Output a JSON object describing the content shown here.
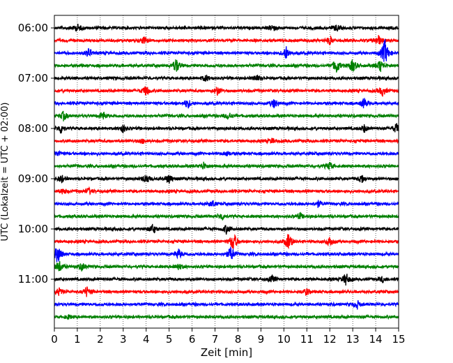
{
  "chart_data": {
    "type": "line",
    "title": "",
    "xlabel": "Zeit  [min]",
    "ylabel": "UTC (Lokalzeit = UTC + 02:00)",
    "xlim": [
      0,
      15
    ],
    "x_ticks": [
      0,
      1,
      2,
      3,
      4,
      5,
      6,
      7,
      8,
      9,
      10,
      11,
      12,
      13,
      14,
      15
    ],
    "grid": "vertical dotted",
    "y_tick_labels": [
      "06:00",
      "07:00",
      "08:00",
      "09:00",
      "10:00",
      "11:00"
    ],
    "traces_per_hour": 4,
    "trace_minutes": 15,
    "colors": [
      "#000000",
      "#ff0000",
      "#0000ff",
      "#008000"
    ],
    "series": [
      {
        "start": "06:00",
        "color": "#000000",
        "events": [
          [
            1.0,
            0.6
          ],
          [
            9.5,
            0.6
          ],
          [
            12.3,
            0.5
          ]
        ]
      },
      {
        "start": "06:15",
        "color": "#ff0000",
        "events": [
          [
            3.9,
            0.6
          ],
          [
            12.0,
            0.6
          ],
          [
            14.1,
            1.0
          ]
        ]
      },
      {
        "start": "06:30",
        "color": "#0000ff",
        "events": [
          [
            1.5,
            0.7
          ],
          [
            10.1,
            1.0
          ],
          [
            14.4,
            2.2
          ]
        ]
      },
      {
        "start": "06:45",
        "color": "#008000",
        "events": [
          [
            5.3,
            1.2
          ],
          [
            12.3,
            1.2
          ],
          [
            13.0,
            1.0
          ],
          [
            14.2,
            1.0
          ]
        ]
      },
      {
        "start": "07:00",
        "color": "#000000",
        "events": [
          [
            6.6,
            0.5
          ],
          [
            8.8,
            0.5
          ]
        ]
      },
      {
        "start": "07:15",
        "color": "#ff0000",
        "events": [
          [
            4.0,
            0.8
          ],
          [
            7.1,
            0.7
          ],
          [
            14.3,
            0.8
          ]
        ]
      },
      {
        "start": "07:30",
        "color": "#0000ff",
        "events": [
          [
            5.8,
            0.8
          ],
          [
            9.6,
            0.8
          ],
          [
            13.5,
            0.8
          ]
        ]
      },
      {
        "start": "07:45",
        "color": "#008000",
        "events": [
          [
            0.4,
            0.7
          ],
          [
            2.1,
            0.7
          ],
          [
            7.6,
            0.6
          ]
        ]
      },
      {
        "start": "08:00",
        "color": "#000000",
        "events": [
          [
            0.3,
            0.8
          ],
          [
            3.0,
            0.6
          ],
          [
            13.5,
            0.6
          ],
          [
            14.9,
            0.8
          ]
        ]
      },
      {
        "start": "08:15",
        "color": "#ff0000",
        "events": [
          [
            3.8,
            0.4
          ],
          [
            9.5,
            0.4
          ]
        ]
      },
      {
        "start": "08:30",
        "color": "#0000ff",
        "events": [
          [
            0.2,
            0.4
          ],
          [
            7.5,
            0.4
          ]
        ]
      },
      {
        "start": "08:45",
        "color": "#008000",
        "events": [
          [
            6.5,
            0.6
          ],
          [
            12.0,
            0.6
          ]
        ]
      },
      {
        "start": "09:00",
        "color": "#000000",
        "events": [
          [
            0.3,
            0.6
          ],
          [
            4.0,
            0.8
          ],
          [
            5.0,
            0.8
          ],
          [
            13.4,
            0.6
          ]
        ]
      },
      {
        "start": "09:15",
        "color": "#ff0000",
        "events": [
          [
            0.4,
            0.5
          ],
          [
            1.5,
            0.5
          ]
        ]
      },
      {
        "start": "09:30",
        "color": "#0000ff",
        "events": [
          [
            6.9,
            0.5
          ],
          [
            11.5,
            0.5
          ]
        ]
      },
      {
        "start": "09:45",
        "color": "#008000",
        "events": [
          [
            7.3,
            0.6
          ],
          [
            10.7,
            0.5
          ]
        ]
      },
      {
        "start": "10:00",
        "color": "#000000",
        "events": [
          [
            4.3,
            0.8
          ],
          [
            7.5,
            0.7
          ]
        ]
      },
      {
        "start": "10:15",
        "color": "#ff0000",
        "events": [
          [
            7.8,
            1.6
          ],
          [
            10.2,
            1.4
          ],
          [
            12.0,
            0.8
          ]
        ]
      },
      {
        "start": "10:30",
        "color": "#0000ff",
        "events": [
          [
            0.15,
            1.6
          ],
          [
            7.7,
            1.2
          ],
          [
            5.4,
            0.8
          ]
        ]
      },
      {
        "start": "10:45",
        "color": "#008000",
        "events": [
          [
            0.2,
            1.0
          ],
          [
            1.2,
            0.6
          ],
          [
            5.4,
            0.5
          ]
        ]
      },
      {
        "start": "11:00",
        "color": "#000000",
        "events": [
          [
            9.5,
            0.5
          ],
          [
            12.7,
            1.0
          ],
          [
            14.3,
            0.5
          ]
        ]
      },
      {
        "start": "11:15",
        "color": "#ff0000",
        "events": [
          [
            0.2,
            0.6
          ],
          [
            1.4,
            0.8
          ],
          [
            11.0,
            0.5
          ]
        ]
      },
      {
        "start": "11:30",
        "color": "#0000ff",
        "events": [
          [
            13.2,
            0.6
          ]
        ]
      },
      {
        "start": "11:45",
        "color": "#008000",
        "events": [
          [
            0.6,
            0.3
          ]
        ]
      }
    ]
  }
}
